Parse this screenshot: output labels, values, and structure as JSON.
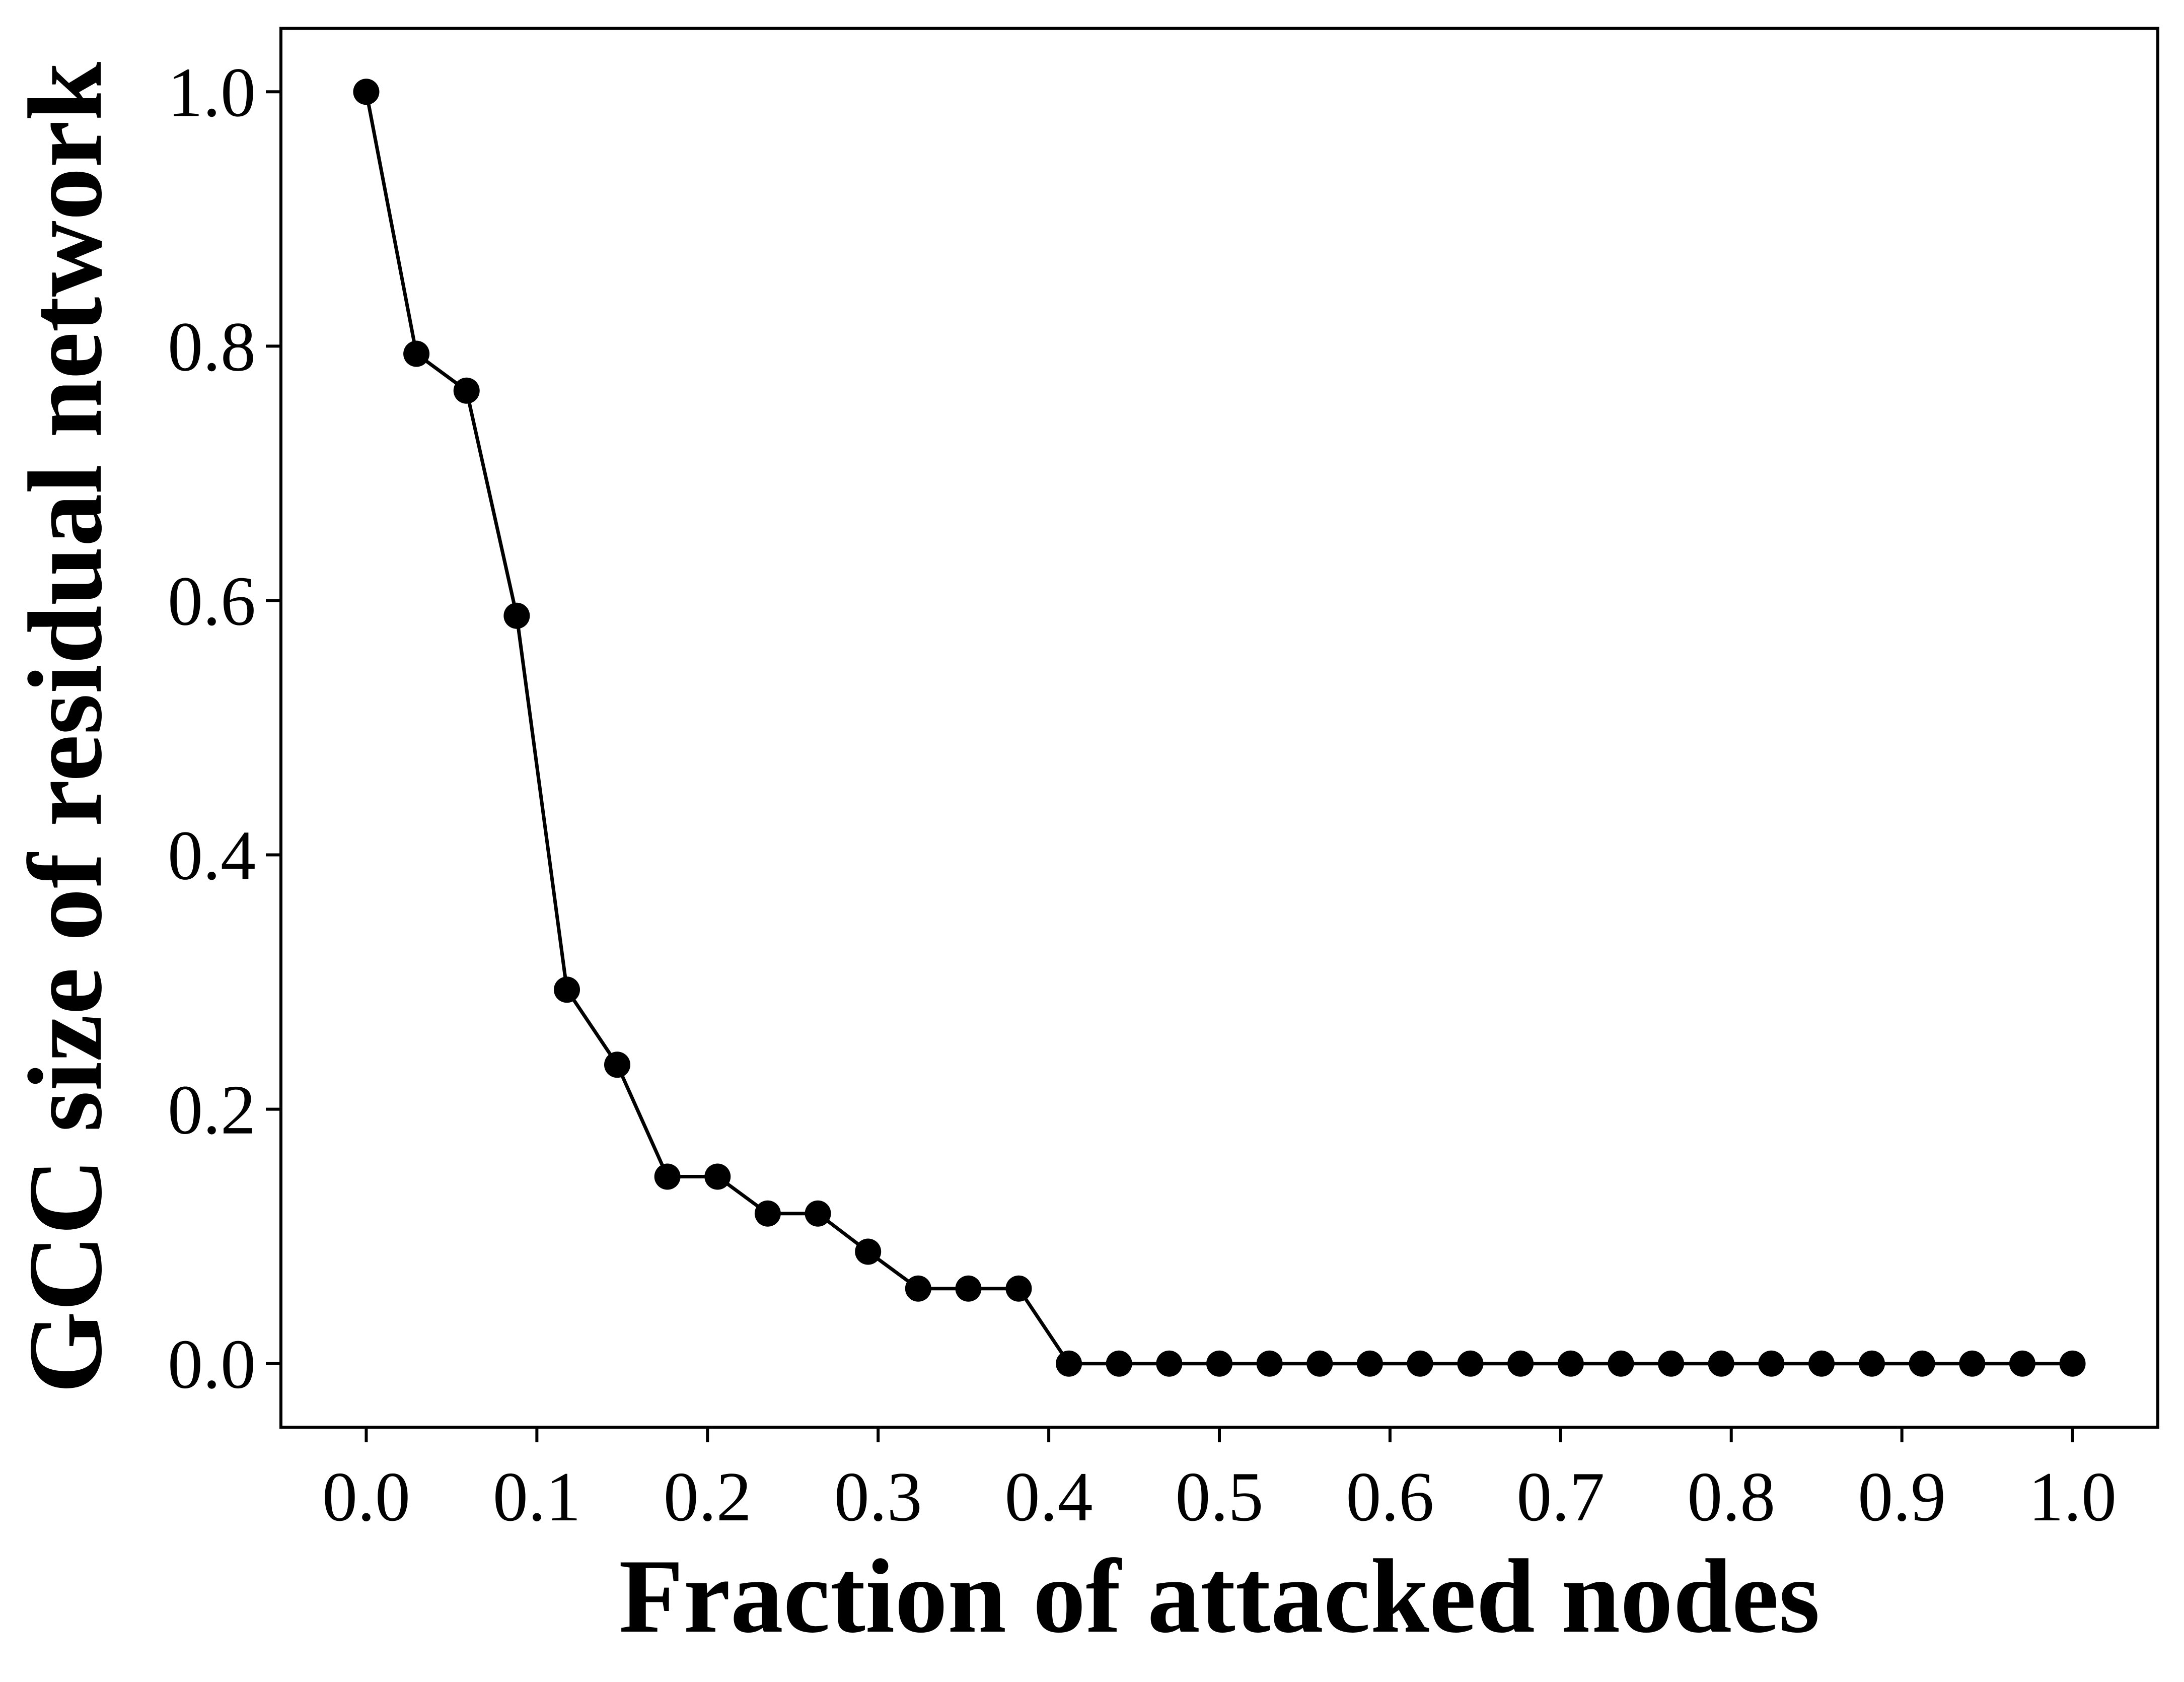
{
  "chart_data": {
    "type": "line",
    "title": "",
    "xlabel": "Fraction of attacked nodes",
    "ylabel": "GCC size of residual network",
    "xlim": [
      -0.05,
      1.05
    ],
    "ylim": [
      -0.05,
      1.05
    ],
    "xticks": [
      "0.0",
      "0.1",
      "0.2",
      "0.3",
      "0.4",
      "0.5",
      "0.6",
      "0.7",
      "0.8",
      "0.9",
      "1.0"
    ],
    "yticks": [
      "0.0",
      "0.2",
      "0.4",
      "0.6",
      "0.8",
      "1.0"
    ],
    "grid": false,
    "legend": "none",
    "series": [
      {
        "color": "#000000",
        "marker": "circle",
        "x": [
          0.0,
          0.0294,
          0.0588,
          0.0882,
          0.1176,
          0.1471,
          0.1765,
          0.2059,
          0.2353,
          0.2647,
          0.2941,
          0.3235,
          0.3529,
          0.3824,
          0.4118,
          0.4412,
          0.4706,
          0.5,
          0.5294,
          0.5588,
          0.5882,
          0.6176,
          0.6471,
          0.6765,
          0.7059,
          0.7353,
          0.7647,
          0.7941,
          0.8235,
          0.8529,
          0.8824,
          0.9118,
          0.9412,
          0.9706,
          1.0
        ],
        "y": [
          1.0,
          0.794,
          0.765,
          0.588,
          0.294,
          0.235,
          0.147,
          0.147,
          0.118,
          0.118,
          0.088,
          0.059,
          0.059,
          0.059,
          0.0,
          0.0,
          0.0,
          0.0,
          0.0,
          0.0,
          0.0,
          0.0,
          0.0,
          0.0,
          0.0,
          0.0,
          0.0,
          0.0,
          0.0,
          0.0,
          0.0,
          0.0,
          0.0,
          0.0,
          0.0
        ]
      }
    ]
  }
}
